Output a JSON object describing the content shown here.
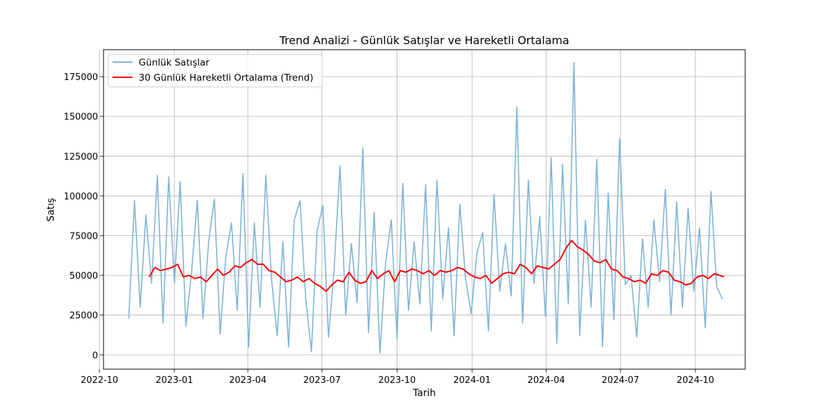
{
  "chart_data": {
    "type": "line",
    "title": "Trend Analizi - Günlük Satışlar ve Hareketli Ortalama",
    "xlabel": "Tarih",
    "ylabel": "Satış",
    "x_range": [
      "2022-11-01",
      "2024-11-05"
    ],
    "xlim": [
      "2022-10-06",
      "2024-12-01"
    ],
    "ylim": [
      -9000,
      192000
    ],
    "x_ticks": [
      "2022-10",
      "2023-01",
      "2023-04",
      "2023-07",
      "2023-10",
      "2024-01",
      "2024-04",
      "2024-07",
      "2024-10"
    ],
    "y_ticks": [
      0,
      25000,
      50000,
      75000,
      100000,
      125000,
      150000,
      175000
    ],
    "grid": true,
    "legend_position": "top-left",
    "series": [
      {
        "name": "Günlük Satışlar",
        "color": "#7fb3d5",
        "note_values": "approximate weekly readings of the daily series",
        "x": [
          "2022-11-06",
          "2022-11-13",
          "2022-11-20",
          "2022-11-27",
          "2022-12-04",
          "2022-12-11",
          "2022-12-18",
          "2022-12-25",
          "2023-01-01",
          "2023-01-08",
          "2023-01-15",
          "2023-01-22",
          "2023-01-29",
          "2023-02-05",
          "2023-02-12",
          "2023-02-19",
          "2023-02-26",
          "2023-03-05",
          "2023-03-12",
          "2023-03-19",
          "2023-03-26",
          "2023-04-02",
          "2023-04-09",
          "2023-04-16",
          "2023-04-23",
          "2023-04-30",
          "2023-05-07",
          "2023-05-14",
          "2023-05-21",
          "2023-05-28",
          "2023-06-04",
          "2023-06-11",
          "2023-06-18",
          "2023-06-25",
          "2023-07-02",
          "2023-07-09",
          "2023-07-16",
          "2023-07-23",
          "2023-07-30",
          "2023-08-06",
          "2023-08-13",
          "2023-08-20",
          "2023-08-27",
          "2023-09-03",
          "2023-09-10",
          "2023-09-17",
          "2023-09-24",
          "2023-10-01",
          "2023-10-08",
          "2023-10-15",
          "2023-10-22",
          "2023-10-29",
          "2023-11-05",
          "2023-11-12",
          "2023-11-19",
          "2023-11-26",
          "2023-12-03",
          "2023-12-10",
          "2023-12-17",
          "2023-12-24",
          "2023-12-31",
          "2024-01-07",
          "2024-01-14",
          "2024-01-21",
          "2024-01-28",
          "2024-02-04",
          "2024-02-11",
          "2024-02-18",
          "2024-02-25",
          "2024-03-03",
          "2024-03-10",
          "2024-03-17",
          "2024-03-24",
          "2024-03-31",
          "2024-04-07",
          "2024-04-14",
          "2024-04-21",
          "2024-04-28",
          "2024-05-05",
          "2024-05-12",
          "2024-05-19",
          "2024-05-26",
          "2024-06-02",
          "2024-06-09",
          "2024-06-16",
          "2024-06-23",
          "2024-06-30",
          "2024-07-07",
          "2024-07-14",
          "2024-07-21",
          "2024-07-28",
          "2024-08-04",
          "2024-08-11",
          "2024-08-18",
          "2024-08-25",
          "2024-09-01",
          "2024-09-08",
          "2024-09-15",
          "2024-09-22",
          "2024-09-29",
          "2024-10-06",
          "2024-10-13",
          "2024-10-20",
          "2024-10-27",
          "2024-11-03"
        ],
        "y": [
          23000,
          97000,
          30000,
          88000,
          45000,
          113000,
          20000,
          112000,
          45000,
          109000,
          18000,
          52000,
          97000,
          23000,
          71000,
          98000,
          13000,
          62000,
          83000,
          28000,
          114000,
          5000,
          83000,
          30000,
          113000,
          48000,
          12000,
          71000,
          5000,
          85000,
          97000,
          35000,
          2000,
          78000,
          94000,
          11000,
          55000,
          119000,
          25000,
          70000,
          33000,
          130000,
          14000,
          90000,
          1000,
          58000,
          85000,
          10000,
          108000,
          28000,
          71000,
          32000,
          107000,
          15000,
          110000,
          35000,
          80000,
          12000,
          95000,
          48000,
          26000,
          64000,
          77000,
          15000,
          101000,
          40000,
          70000,
          37000,
          156000,
          20000,
          110000,
          45000,
          87000,
          24000,
          124000,
          7000,
          120000,
          32000,
          184000,
          12000,
          85000,
          30000,
          123000,
          5000,
          102000,
          22000,
          136000,
          44000,
          50000,
          11000,
          73000,
          30000,
          85000,
          46000,
          104000,
          25000,
          96000,
          30000,
          92000,
          40000,
          80000,
          17000,
          103000,
          43000,
          35000
        ]
      },
      {
        "name": "30 Günlük Hareketli Ortalama (Trend)",
        "color": "#ff0000",
        "note_values": "approximate readings",
        "x": [
          "2022-12-01",
          "2022-12-08",
          "2022-12-15",
          "2022-12-22",
          "2022-12-29",
          "2023-01-05",
          "2023-01-12",
          "2023-01-19",
          "2023-01-26",
          "2023-02-02",
          "2023-02-09",
          "2023-02-16",
          "2023-02-23",
          "2023-03-02",
          "2023-03-09",
          "2023-03-16",
          "2023-03-23",
          "2023-03-30",
          "2023-04-06",
          "2023-04-13",
          "2023-04-20",
          "2023-04-27",
          "2023-05-04",
          "2023-05-11",
          "2023-05-18",
          "2023-05-25",
          "2023-06-01",
          "2023-06-08",
          "2023-06-15",
          "2023-06-22",
          "2023-06-29",
          "2023-07-06",
          "2023-07-13",
          "2023-07-20",
          "2023-07-27",
          "2023-08-03",
          "2023-08-10",
          "2023-08-17",
          "2023-08-24",
          "2023-08-31",
          "2023-09-07",
          "2023-09-14",
          "2023-09-21",
          "2023-09-28",
          "2023-10-05",
          "2023-10-12",
          "2023-10-19",
          "2023-10-26",
          "2023-11-02",
          "2023-11-09",
          "2023-11-16",
          "2023-11-23",
          "2023-11-30",
          "2023-12-07",
          "2023-12-14",
          "2023-12-21",
          "2023-12-28",
          "2024-01-04",
          "2024-01-11",
          "2024-01-18",
          "2024-01-25",
          "2024-02-01",
          "2024-02-08",
          "2024-02-15",
          "2024-02-22",
          "2024-02-29",
          "2024-03-07",
          "2024-03-14",
          "2024-03-21",
          "2024-03-28",
          "2024-04-04",
          "2024-04-11",
          "2024-04-18",
          "2024-04-25",
          "2024-05-02",
          "2024-05-09",
          "2024-05-16",
          "2024-05-23",
          "2024-05-30",
          "2024-06-06",
          "2024-06-13",
          "2024-06-20",
          "2024-06-27",
          "2024-07-04",
          "2024-07-11",
          "2024-07-18",
          "2024-07-25",
          "2024-08-01",
          "2024-08-08",
          "2024-08-15",
          "2024-08-22",
          "2024-08-29",
          "2024-09-05",
          "2024-09-12",
          "2024-09-19",
          "2024-09-26",
          "2024-10-03",
          "2024-10-10",
          "2024-10-17",
          "2024-10-24",
          "2024-10-31",
          "2024-11-05"
        ],
        "y": [
          49000,
          55000,
          53000,
          54000,
          55000,
          57000,
          49000,
          50000,
          48000,
          49000,
          46000,
          50000,
          54000,
          50000,
          52000,
          56000,
          55000,
          58000,
          60000,
          57000,
          57000,
          53000,
          52000,
          49000,
          46000,
          47000,
          49000,
          46000,
          48000,
          45000,
          43000,
          40000,
          44000,
          47000,
          46000,
          52000,
          47000,
          45000,
          46000,
          53000,
          48000,
          51000,
          53000,
          46000,
          53000,
          52000,
          54000,
          53000,
          51000,
          53000,
          50000,
          53000,
          52000,
          53000,
          55000,
          54000,
          51000,
          49000,
          48000,
          50000,
          45000,
          48000,
          51000,
          52000,
          51000,
          57000,
          55000,
          51000,
          56000,
          55000,
          54000,
          57000,
          60000,
          67000,
          72000,
          68000,
          66000,
          63000,
          59000,
          58000,
          60000,
          54000,
          53000,
          49000,
          48000,
          46000,
          47000,
          45000,
          51000,
          50000,
          53000,
          52000,
          47000,
          46000,
          44000,
          45000,
          49000,
          50000,
          48000,
          51000,
          50000,
          49000
        ]
      }
    ]
  }
}
